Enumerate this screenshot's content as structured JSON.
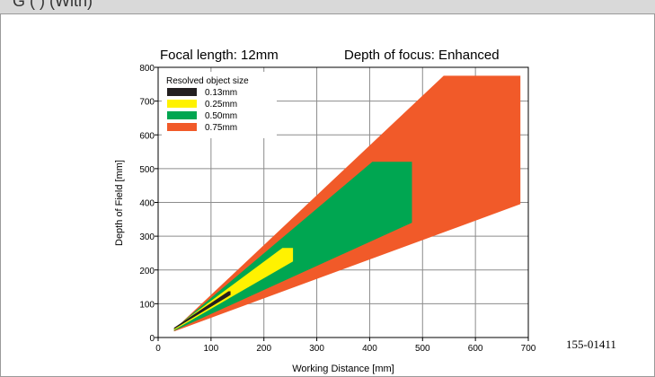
{
  "header": {
    "partial_text": "G ( ) (With)"
  },
  "figure_code": "155-01411",
  "chart_data": {
    "type": "area",
    "title_left": "Focal length: 12mm",
    "title_right": "Depth of focus: Enhanced",
    "xlabel": "Working Distance [mm]",
    "ylabel": "Depth of Field [mm]",
    "xlim": [
      0,
      700
    ],
    "ylim": [
      0,
      800
    ],
    "x_ticks": [
      0,
      100,
      200,
      300,
      400,
      500,
      600,
      700
    ],
    "y_ticks": [
      0,
      100,
      200,
      300,
      400,
      500,
      600,
      700,
      800
    ],
    "grid": true,
    "legend": {
      "title": "Resolved object size",
      "placement": "top-left",
      "entries": [
        "0.13mm",
        "0.25mm",
        "0.50mm",
        "0.75mm"
      ]
    },
    "series": [
      {
        "name": "0.75mm",
        "color": "#f15a29",
        "polygon": [
          [
            30,
            23
          ],
          [
            540,
            775
          ],
          [
            685,
            775
          ],
          [
            685,
            395
          ],
          [
            30,
            18
          ]
        ]
      },
      {
        "name": "0.50mm",
        "color": "#00a651",
        "polygon": [
          [
            30,
            25
          ],
          [
            405,
            520
          ],
          [
            480,
            520
          ],
          [
            480,
            340
          ],
          [
            30,
            20
          ]
        ]
      },
      {
        "name": "0.25mm",
        "color": "#fff200",
        "polygon": [
          [
            30,
            27
          ],
          [
            235,
            265
          ],
          [
            255,
            265
          ],
          [
            255,
            225
          ],
          [
            30,
            22
          ]
        ]
      },
      {
        "name": "0.13mm",
        "color": "#231f20",
        "polygon": [
          [
            30,
            29
          ],
          [
            133,
            137
          ],
          [
            137,
            137
          ],
          [
            137,
            126
          ],
          [
            30,
            25
          ]
        ]
      }
    ]
  }
}
